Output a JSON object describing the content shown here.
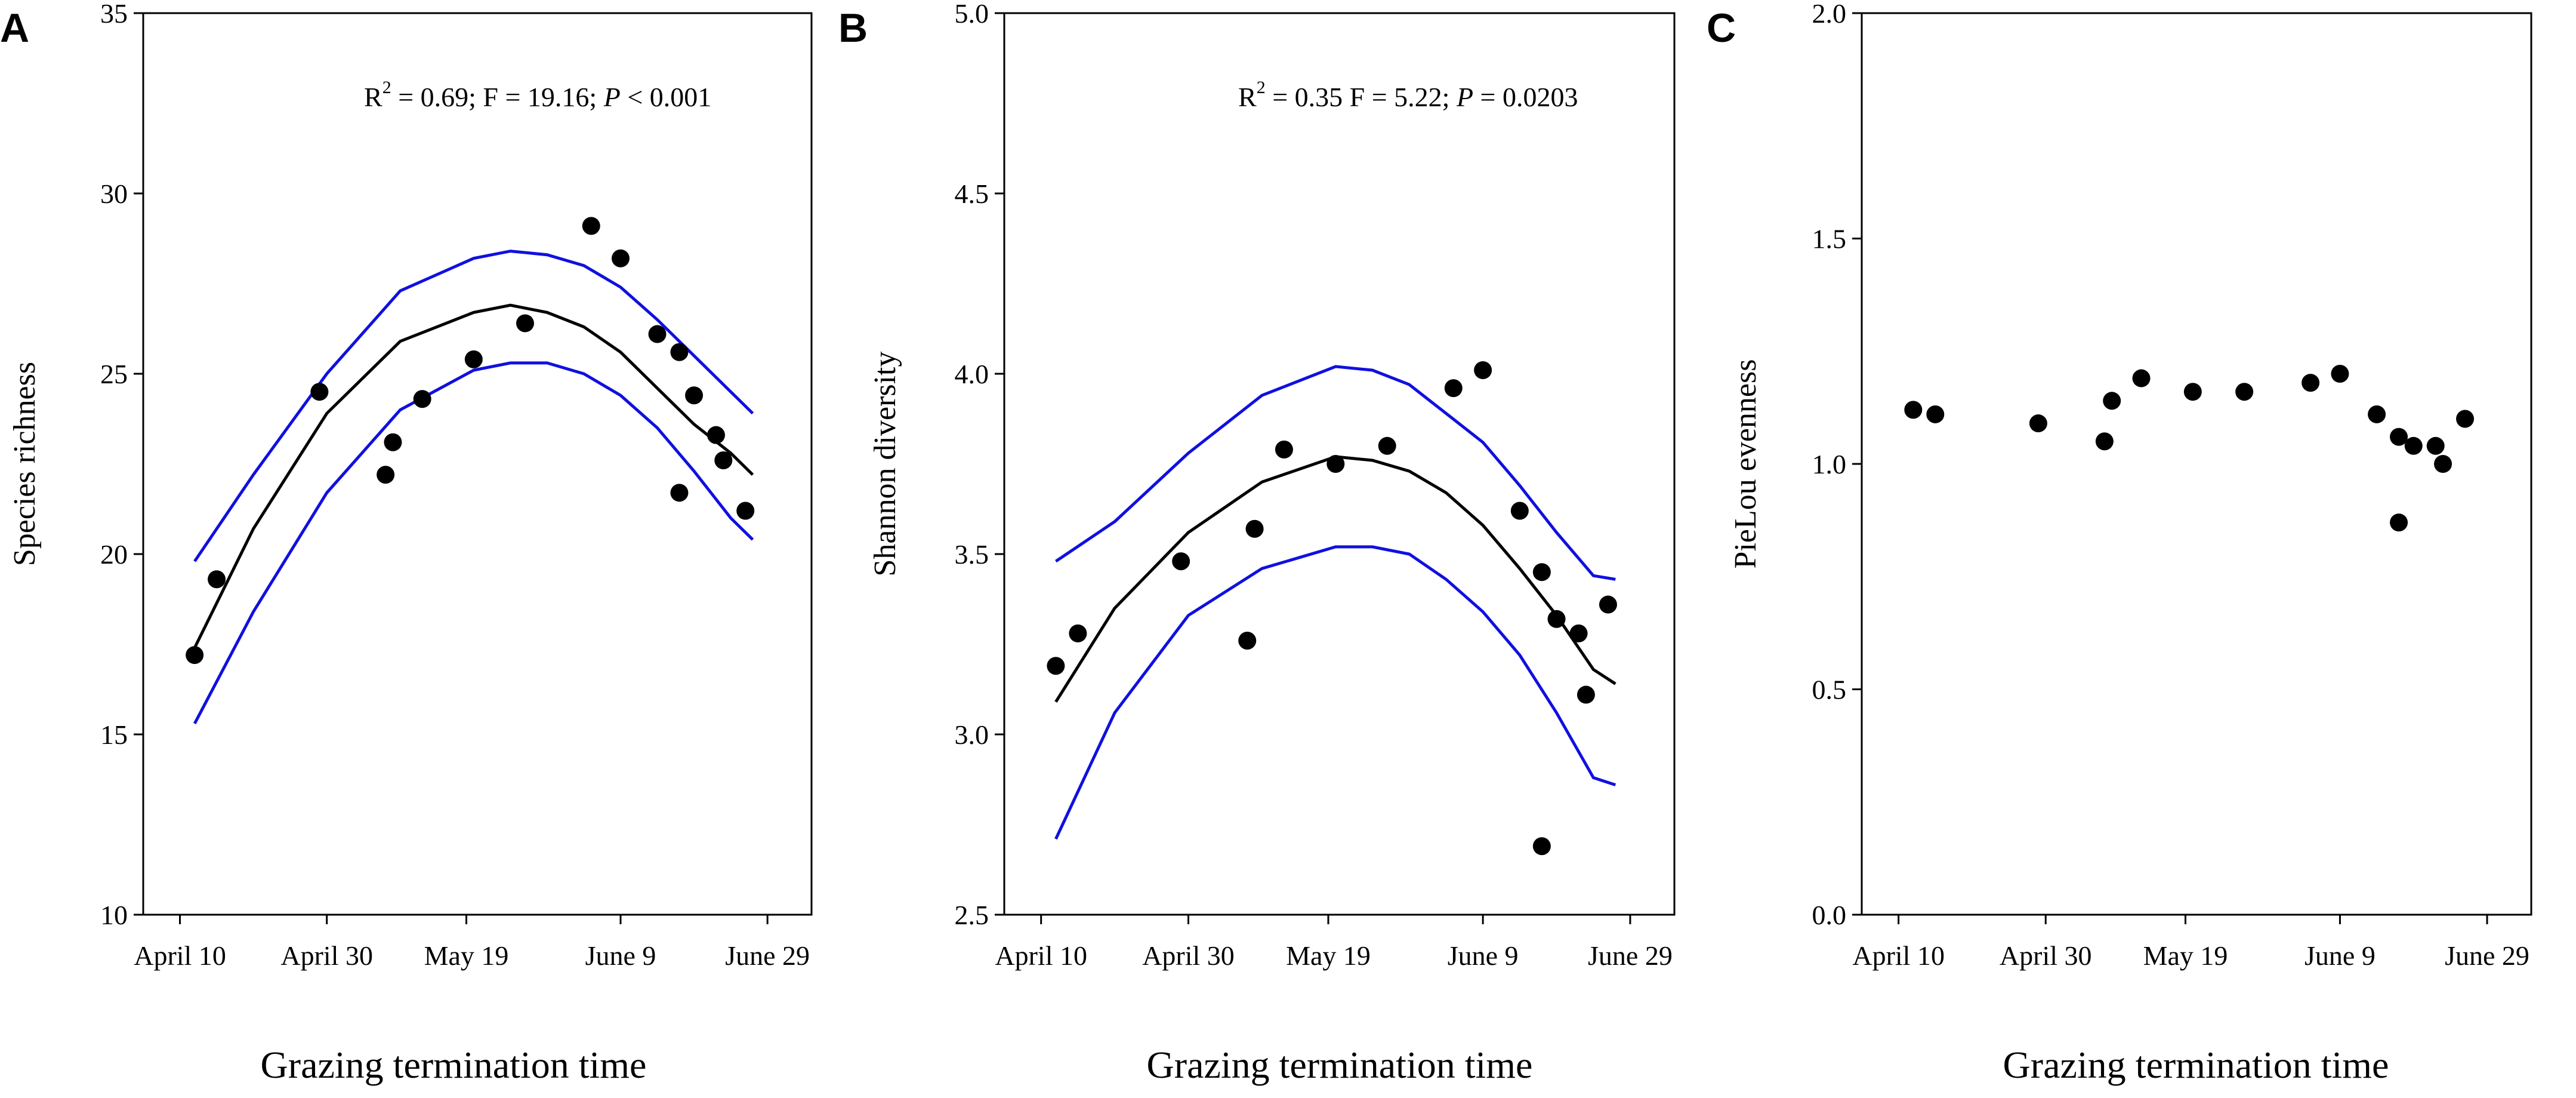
{
  "chart_data": [
    {
      "type": "scatter",
      "panel": "A",
      "title": "",
      "xlabel": "Grazing termination time",
      "ylabel": "Species richness",
      "x_tick_labels": [
        "April 10",
        "April 30",
        "May 19",
        "June 9",
        "June 29"
      ],
      "x_tick_days": [
        0,
        20,
        39,
        60,
        80
      ],
      "xlim": [
        -5,
        86
      ],
      "ylim": [
        10,
        35
      ],
      "y_ticks": [
        10,
        15,
        20,
        25,
        30,
        35
      ],
      "annotation": {
        "r2": "R",
        "r2_exp": "2",
        "mid": " = 0.69; F = 19.16; ",
        "p_italic": "P",
        "tail": " < 0.001"
      },
      "points": [
        {
          "x": 2,
          "y": 17.2
        },
        {
          "x": 5,
          "y": 19.3
        },
        {
          "x": 19,
          "y": 24.5
        },
        {
          "x": 28,
          "y": 22.2
        },
        {
          "x": 29,
          "y": 23.1
        },
        {
          "x": 33,
          "y": 24.3
        },
        {
          "x": 40,
          "y": 25.4
        },
        {
          "x": 47,
          "y": 26.4
        },
        {
          "x": 56,
          "y": 29.1
        },
        {
          "x": 60,
          "y": 28.2
        },
        {
          "x": 65,
          "y": 26.1
        },
        {
          "x": 68,
          "y": 25.6
        },
        {
          "x": 68,
          "y": 21.7
        },
        {
          "x": 70,
          "y": 24.4
        },
        {
          "x": 73,
          "y": 23.3
        },
        {
          "x": 74,
          "y": 22.6
        },
        {
          "x": 77,
          "y": 21.2
        }
      ],
      "fit": {
        "x": [
          2,
          10,
          20,
          30,
          40,
          45,
          50,
          55,
          60,
          65,
          70,
          75,
          78
        ],
        "y": [
          17.4,
          20.7,
          23.9,
          25.9,
          26.7,
          26.9,
          26.7,
          26.3,
          25.6,
          24.6,
          23.6,
          22.8,
          22.2
        ]
      },
      "ci_upper": {
        "x": [
          2,
          10,
          20,
          30,
          40,
          45,
          50,
          55,
          60,
          65,
          70,
          75,
          78
        ],
        "y": [
          19.8,
          22.2,
          25.0,
          27.3,
          28.2,
          28.4,
          28.3,
          28.0,
          27.4,
          26.5,
          25.5,
          24.5,
          23.9
        ]
      },
      "ci_lower": {
        "x": [
          2,
          10,
          20,
          30,
          40,
          45,
          50,
          55,
          60,
          65,
          70,
          75,
          78
        ],
        "y": [
          15.3,
          18.4,
          21.7,
          24.0,
          25.1,
          25.3,
          25.3,
          25.0,
          24.4,
          23.5,
          22.3,
          21.0,
          20.4
        ]
      }
    },
    {
      "type": "scatter",
      "panel": "B",
      "title": "",
      "xlabel": "Grazing termination time",
      "ylabel": "Shannon diversity",
      "x_tick_labels": [
        "April 10",
        "April 30",
        "May 19",
        "June 9",
        "June 29"
      ],
      "x_tick_days": [
        0,
        20,
        39,
        60,
        80
      ],
      "xlim": [
        -5,
        86
      ],
      "ylim": [
        2.5,
        5.0
      ],
      "y_ticks": [
        2.5,
        3.0,
        3.5,
        4.0,
        4.5,
        5.0
      ],
      "annotation": {
        "r2": "R",
        "r2_exp": "2",
        "mid": " = 0.35 F = 5.22; ",
        "p_italic": "P",
        "tail": " = 0.0203"
      },
      "points": [
        {
          "x": 2,
          "y": 3.19
        },
        {
          "x": 5,
          "y": 3.28
        },
        {
          "x": 19,
          "y": 3.48
        },
        {
          "x": 28,
          "y": 3.26
        },
        {
          "x": 29,
          "y": 3.57
        },
        {
          "x": 33,
          "y": 3.79
        },
        {
          "x": 40,
          "y": 3.75
        },
        {
          "x": 47,
          "y": 3.8
        },
        {
          "x": 56,
          "y": 3.96
        },
        {
          "x": 60,
          "y": 4.01
        },
        {
          "x": 65,
          "y": 3.62
        },
        {
          "x": 68,
          "y": 3.45
        },
        {
          "x": 68,
          "y": 2.69
        },
        {
          "x": 70,
          "y": 3.32
        },
        {
          "x": 73,
          "y": 3.28
        },
        {
          "x": 74,
          "y": 3.11
        },
        {
          "x": 77,
          "y": 3.36
        }
      ],
      "fit": {
        "x": [
          2,
          10,
          20,
          30,
          40,
          45,
          50,
          55,
          60,
          65,
          70,
          75,
          78
        ],
        "y": [
          3.09,
          3.35,
          3.56,
          3.7,
          3.77,
          3.76,
          3.73,
          3.67,
          3.58,
          3.46,
          3.33,
          3.18,
          3.14
        ]
      },
      "ci_upper": {
        "x": [
          2,
          10,
          20,
          30,
          40,
          45,
          50,
          55,
          60,
          65,
          70,
          75,
          78
        ],
        "y": [
          3.48,
          3.59,
          3.78,
          3.94,
          4.02,
          4.01,
          3.97,
          3.89,
          3.81,
          3.69,
          3.56,
          3.44,
          3.43
        ]
      },
      "ci_lower": {
        "x": [
          2,
          10,
          20,
          30,
          40,
          45,
          50,
          55,
          60,
          65,
          70,
          75,
          78
        ],
        "y": [
          2.71,
          3.06,
          3.33,
          3.46,
          3.52,
          3.52,
          3.5,
          3.43,
          3.34,
          3.22,
          3.06,
          2.88,
          2.86
        ]
      }
    },
    {
      "type": "scatter",
      "panel": "C",
      "title": "",
      "xlabel": "Grazing termination time",
      "ylabel": "PieLou evenness",
      "x_tick_labels": [
        "April 10",
        "April 30",
        "May 19",
        "June 9",
        "June 29"
      ],
      "x_tick_days": [
        0,
        20,
        39,
        60,
        80
      ],
      "xlim": [
        -5,
        86
      ],
      "ylim": [
        0.0,
        2.0
      ],
      "y_ticks": [
        0.0,
        0.5,
        1.0,
        1.5,
        2.0
      ],
      "points": [
        {
          "x": 2,
          "y": 1.12
        },
        {
          "x": 5,
          "y": 1.11
        },
        {
          "x": 19,
          "y": 1.09
        },
        {
          "x": 28,
          "y": 1.05
        },
        {
          "x": 29,
          "y": 1.14
        },
        {
          "x": 33,
          "y": 1.19
        },
        {
          "x": 40,
          "y": 1.16
        },
        {
          "x": 47,
          "y": 1.16
        },
        {
          "x": 56,
          "y": 1.18
        },
        {
          "x": 60,
          "y": 1.2
        },
        {
          "x": 65,
          "y": 1.11
        },
        {
          "x": 68,
          "y": 1.06
        },
        {
          "x": 68,
          "y": 0.87
        },
        {
          "x": 70,
          "y": 1.04
        },
        {
          "x": 73,
          "y": 1.04
        },
        {
          "x": 74,
          "y": 1.0
        },
        {
          "x": 77,
          "y": 1.1
        }
      ]
    }
  ]
}
